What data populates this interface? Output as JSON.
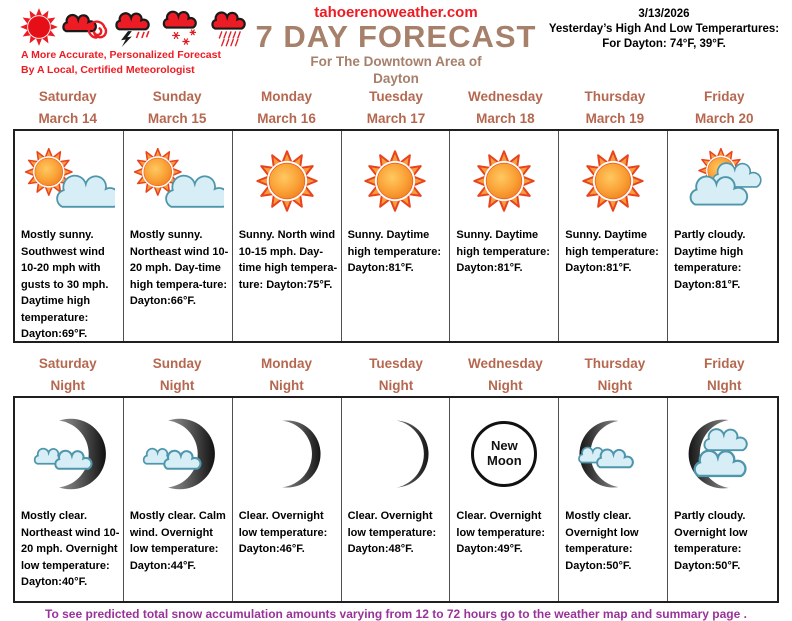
{
  "header": {
    "site": "tahoerenoweather.com",
    "title": "7 DAY FORECAST",
    "subtitle1": "For The Downtown Area of",
    "subtitle2": "Dayton",
    "date": "3/13/2026",
    "yesterday_line1": "Yesterday’s High And Low Temperartures:",
    "yesterday_line2": "For Dayton: 74°F,  39°F.",
    "logo_tagline_line1": "A More Accurate, Personalized Forecast",
    "logo_tagline_line2": "By A Local, Certified Meteorologist",
    "logo_icons": [
      "sun-icon",
      "windy-cloud-icon",
      "thunderstorm-cloud-icon",
      "snow-cloud-icon",
      "rain-cloud-icon"
    ]
  },
  "colors": {
    "brand_red": "#ed1c24",
    "title_tan": "#a6806a",
    "day_header_terracotta": "#b5684f",
    "footer_purple": "#993399"
  },
  "day_section": {
    "columns": [
      {
        "day": "Saturday",
        "date": "March 14",
        "icon": "mostly-sunny",
        "forecast": "Mostly sunny. Southwest wind 10-20 mph with gusts to 30 mph. Daytime high temperature: Dayton:69°F."
      },
      {
        "day": "Sunday",
        "date": "March 15",
        "icon": "mostly-sunny",
        "forecast": "Mostly sunny. Northeast wind 10-20 mph. Day-time high tempera-ture: Dayton:66°F."
      },
      {
        "day": "Monday",
        "date": "March 16",
        "icon": "sunny",
        "forecast": "Sunny. North wind 10-15 mph. Day-time high tempera-ture: Dayton:75°F."
      },
      {
        "day": "Tuesday",
        "date": "March 17",
        "icon": "sunny",
        "forecast": "Sunny. Daytime high temperature: Dayton:81°F."
      },
      {
        "day": "Wednesday",
        "date": "March 18",
        "icon": "sunny",
        "forecast": "Sunny. Daytime high temperature: Dayton:81°F."
      },
      {
        "day": "Thursday",
        "date": "March 19",
        "icon": "sunny",
        "forecast": "Sunny. Daytime high temperature: Dayton:81°F."
      },
      {
        "day": "Friday",
        "date": "March 20",
        "icon": "partly-cloudy",
        "forecast": "Partly cloudy. Daytime high temperature: Dayton:81°F."
      }
    ]
  },
  "night_section": {
    "columns": [
      {
        "day": "Saturday",
        "night": "Night",
        "icon": "moon-clouds",
        "forecast": "Mostly clear. Northeast wind 10-20 mph. Overnight low temperature: Dayton:40°F."
      },
      {
        "day": "Sunday",
        "night": "Night",
        "icon": "moon-clouds",
        "forecast": "Mostly clear. Calm wind. Overnight low temperature: Dayton:44°F."
      },
      {
        "day": "Monday",
        "night": "Night",
        "icon": "crescent",
        "forecast": "Clear. Overnight low temperature: Dayton:46°F."
      },
      {
        "day": "Tuesday",
        "night": "Night",
        "icon": "crescent-thin",
        "forecast": "Clear. Overnight low temperature: Dayton:48°F."
      },
      {
        "day": "Wednesday",
        "night": "Night",
        "icon": "new-moon",
        "icon_label": "New Moon",
        "forecast": "Clear. Overnight low temperature: Dayton:49°F."
      },
      {
        "day": "Thursday",
        "night": "Night",
        "icon": "waning-clouds",
        "forecast": "Mostly clear. Overnight low temperature: Dayton:50°F."
      },
      {
        "day": "Friday",
        "night": "NIght",
        "icon": "waning-clouds-big",
        "forecast": "Partly cloudy. Overnight low temperature: Dayton:50°F."
      }
    ]
  },
  "footer": {
    "note": "To see predicted total snow accumulation amounts varying from 12 to 72 hours go to the weather map and summary page ."
  }
}
